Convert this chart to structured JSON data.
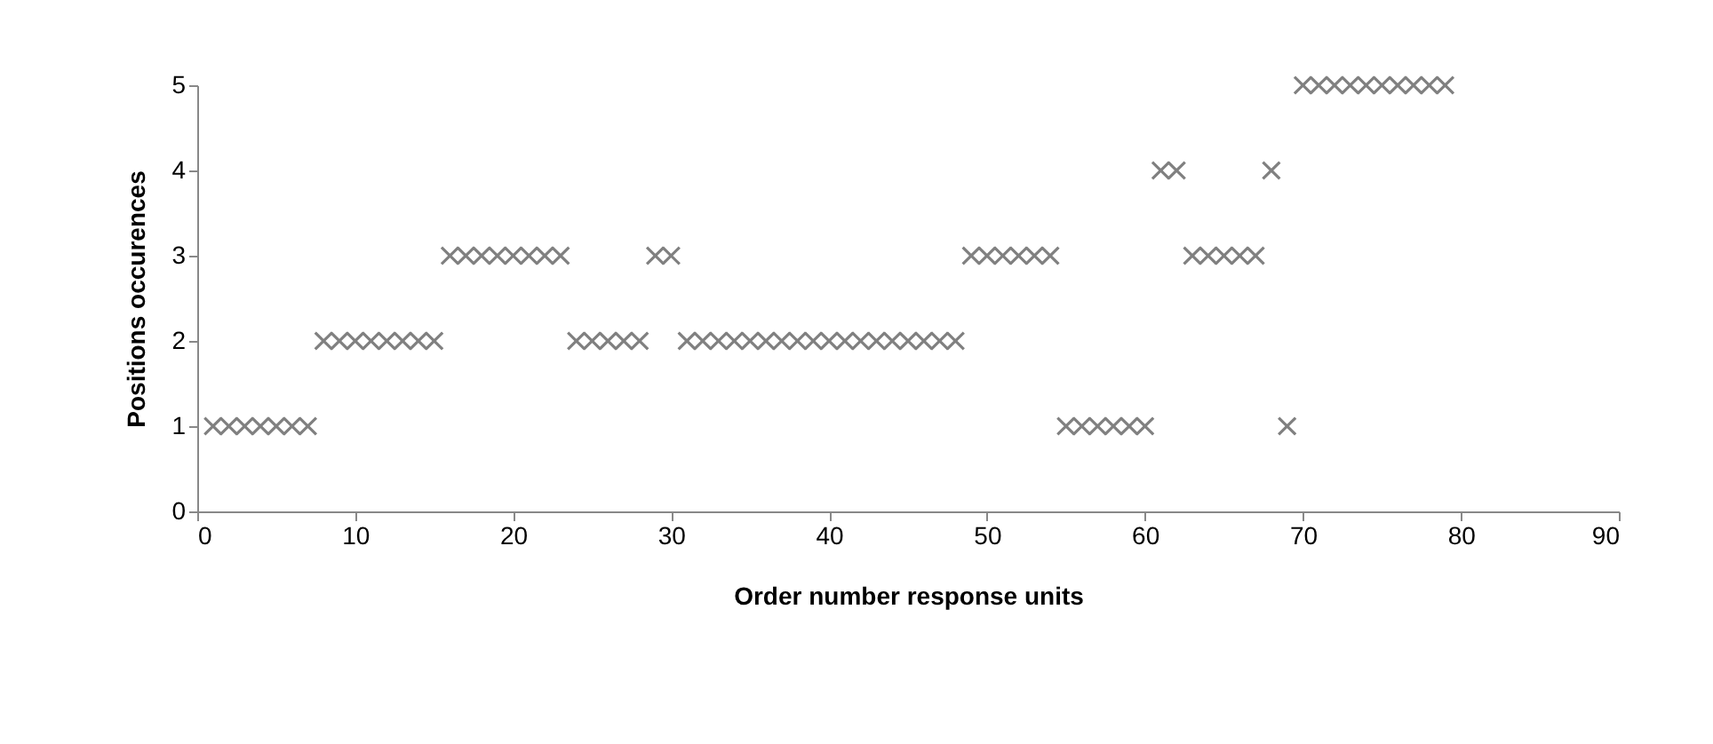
{
  "chart_data": {
    "type": "scatter",
    "xlabel": "Order number response units",
    "ylabel": "Positions occurences",
    "x": [
      1,
      2,
      3,
      4,
      5,
      6,
      7,
      8,
      9,
      10,
      11,
      12,
      13,
      14,
      15,
      16,
      17,
      18,
      19,
      20,
      21,
      22,
      23,
      24,
      25,
      26,
      27,
      28,
      29,
      30,
      31,
      32,
      33,
      34,
      35,
      36,
      37,
      38,
      39,
      40,
      41,
      42,
      43,
      44,
      45,
      46,
      47,
      48,
      49,
      50,
      51,
      52,
      53,
      54,
      55,
      56,
      57,
      58,
      59,
      60,
      61,
      62,
      63,
      64,
      65,
      66,
      67,
      68,
      69,
      70,
      71,
      72,
      73,
      74,
      75,
      76,
      77,
      78,
      79
    ],
    "series": [
      {
        "color": "#808080",
        "values": [
          1,
          1,
          1,
          1,
          1,
          1,
          1,
          2,
          2,
          2,
          2,
          2,
          2,
          2,
          2,
          3,
          3,
          3,
          3,
          3,
          3,
          3,
          3,
          2,
          2,
          2,
          2,
          2,
          3,
          3,
          2,
          2,
          2,
          2,
          2,
          2,
          2,
          2,
          2,
          2,
          2,
          2,
          2,
          2,
          2,
          2,
          2,
          2,
          3,
          3,
          3,
          3,
          3,
          3,
          1,
          1,
          1,
          1,
          1,
          1,
          4,
          4,
          3,
          3,
          3,
          3,
          3,
          4,
          1,
          5,
          5,
          5,
          5,
          5,
          5,
          5,
          5,
          5,
          5
        ]
      }
    ],
    "xlim": [
      0,
      90
    ],
    "xticks": [
      0,
      10,
      20,
      30,
      40,
      50,
      60,
      70,
      80,
      90
    ],
    "ylim": [
      0,
      5
    ],
    "yticks": [
      0,
      1,
      2,
      3,
      4,
      5
    ],
    "grid": false,
    "marker": "cross"
  }
}
